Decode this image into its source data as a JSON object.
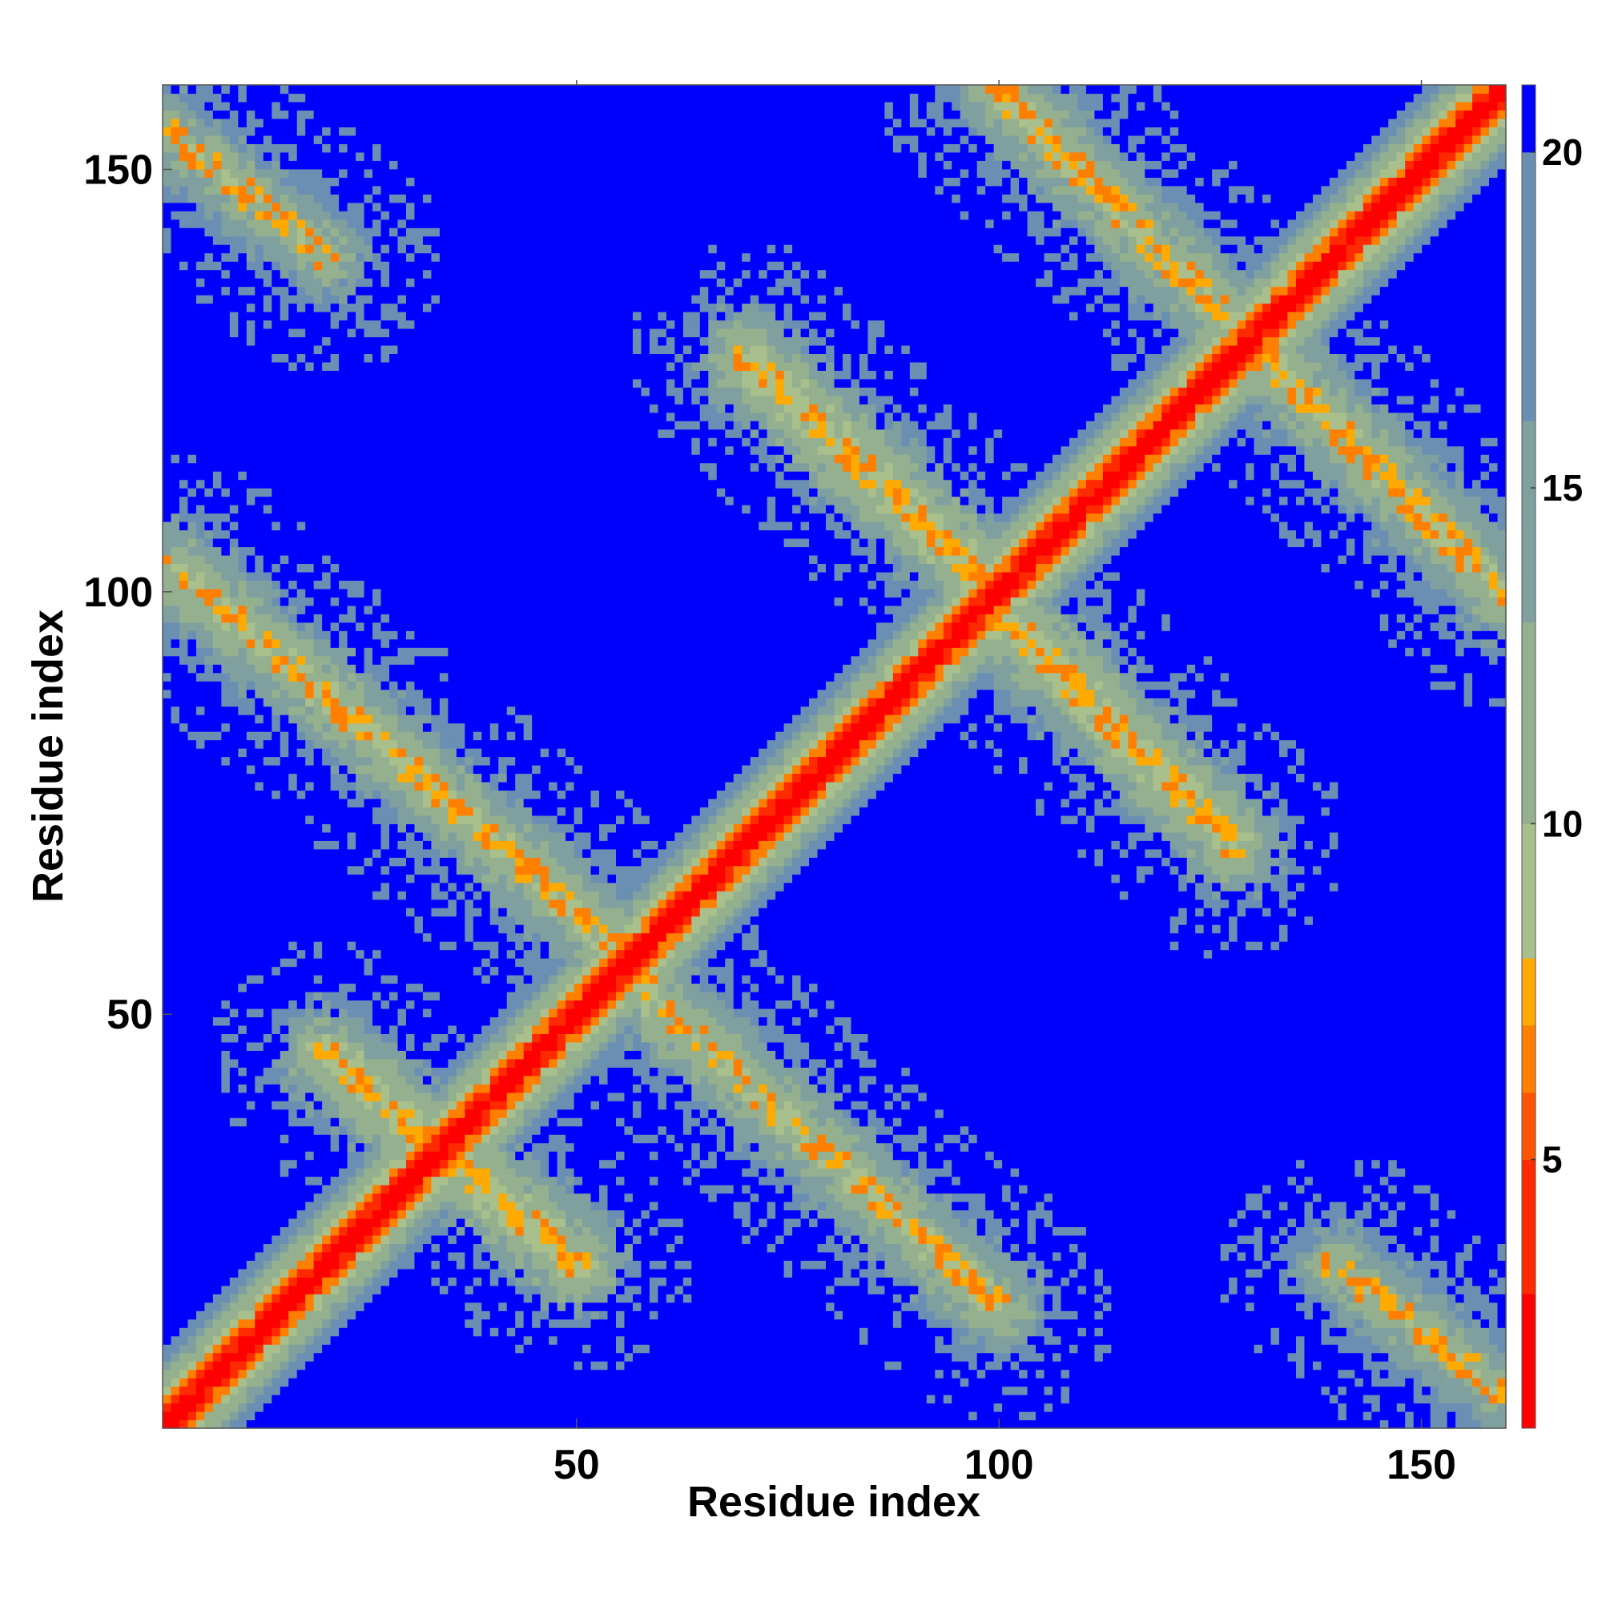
{
  "chart_data": {
    "type": "heatmap",
    "title": "",
    "xlabel": "Residue index",
    "ylabel": "Residue index",
    "xlim": [
      1,
      160
    ],
    "ylim": [
      1,
      160
    ],
    "n_residues": 160,
    "x_ticks": [
      50,
      100,
      150
    ],
    "y_ticks": [
      50,
      100,
      150
    ],
    "colorbar": {
      "range": [
        1,
        21
      ],
      "ticks": [
        5,
        10,
        15,
        20
      ],
      "levels": [
        {
          "from": 1,
          "to": 3,
          "color": "#ff0000"
        },
        {
          "from": 3,
          "to": 5,
          "color": "#ff2a00"
        },
        {
          "from": 5,
          "to": 6,
          "color": "#ff5500"
        },
        {
          "from": 6,
          "to": 7,
          "color": "#ff7f00"
        },
        {
          "from": 7,
          "to": 8,
          "color": "#ffaa00"
        },
        {
          "from": 8,
          "to": 10,
          "color": "#a9c08c"
        },
        {
          "from": 10,
          "to": 13,
          "color": "#94b08e"
        },
        {
          "from": 13,
          "to": 16,
          "color": "#80a0a0"
        },
        {
          "from": 16,
          "to": 20,
          "color": "#6b8fb3"
        },
        {
          "from": 20,
          "to": 21,
          "color": "#0000ff"
        }
      ]
    },
    "structure": {
      "description_of_bands": "distance map, symmetric about the main diagonal",
      "diagonal_band": {
        "from": [
          1,
          1
        ],
        "to": [
          160,
          160
        ],
        "values": "near 1-5 on diagonal, rising to about 16 at 8 residues off-diagonal"
      },
      "antidiagonal_bands": [
        {
          "from": [
            20,
            45
          ],
          "to": [
            50,
            20
          ],
          "value": 8
        },
        {
          "from": [
            2,
            103
          ],
          "to": [
            58,
            55
          ],
          "value": 9
        },
        {
          "from": [
            1,
            155
          ],
          "to": [
            20,
            140
          ],
          "value": 10
        },
        {
          "from": [
            70,
            128
          ],
          "to": [
            100,
            100
          ],
          "value": 8
        },
        {
          "from": [
            100,
            98
          ],
          "to": [
            128,
            70
          ],
          "value": 8
        },
        {
          "from": [
            55,
            55
          ],
          "to": [
            100,
            15
          ],
          "value": 9
        },
        {
          "from": [
            100,
            160
          ],
          "to": [
            160,
            100
          ],
          "value": 9
        },
        {
          "from": [
            140,
            20
          ],
          "to": [
            160,
            5
          ],
          "value": 10
        }
      ],
      "background_value": 21
    }
  }
}
